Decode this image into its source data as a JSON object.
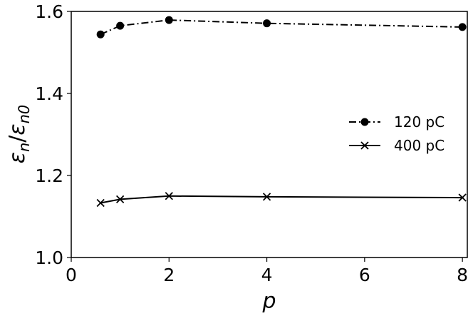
{
  "chart_data": {
    "type": "line",
    "x": [
      0.6,
      1,
      2,
      4,
      8
    ],
    "series": [
      {
        "name": "120 pC",
        "values": [
          1.544,
          1.565,
          1.579,
          1.571,
          1.562
        ],
        "marker": "circle",
        "line_style": "dash-dot",
        "color": "#000000"
      },
      {
        "name": "400 pC",
        "values": [
          1.133,
          1.142,
          1.15,
          1.148,
          1.146
        ],
        "marker": "x",
        "line_style": "solid",
        "color": "#000000"
      }
    ],
    "xlabel": "p",
    "ylabel_main": "ε",
    "ylabel_sub1": "n",
    "ylabel_slash": "/",
    "ylabel_sub2": "n0",
    "xlim": [
      0,
      8.1
    ],
    "ylim": [
      1.0,
      1.6
    ],
    "xticks": [
      "0",
      "2",
      "4",
      "6",
      "8"
    ],
    "xtick_values": [
      0,
      2,
      4,
      6,
      8
    ],
    "yticks": [
      "1.0",
      "1.2",
      "1.4",
      "1.6"
    ],
    "ytick_values": [
      1.0,
      1.2,
      1.4,
      1.6
    ],
    "grid": false,
    "legend_position": "right"
  }
}
